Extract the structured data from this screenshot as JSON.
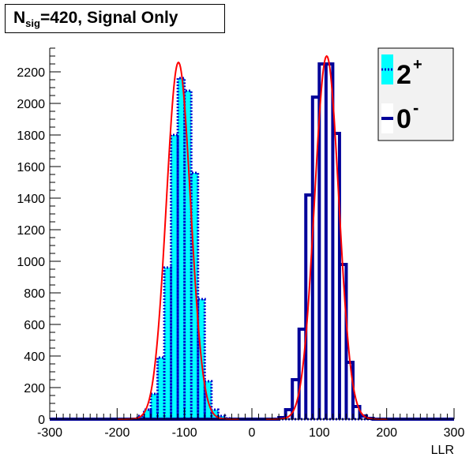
{
  "title": {
    "main": "N",
    "sub": "sig",
    "rest": "=420, Signal Only"
  },
  "chart_data": {
    "type": "histogram",
    "xlabel": "LLR",
    "ylabel": "",
    "xlim": [
      -300,
      300
    ],
    "ylim": [
      0,
      2350
    ],
    "x_ticks": [
      -300,
      -200,
      -100,
      0,
      100,
      200,
      300
    ],
    "y_ticks": [
      0,
      200,
      400,
      600,
      800,
      1000,
      1200,
      1400,
      1600,
      1800,
      2000,
      2200
    ],
    "bin_width": 10,
    "legend": {
      "placement": "top-right",
      "entries": [
        {
          "label": "2",
          "sup": "+",
          "style": "filled-cyan-dotted-blue"
        },
        {
          "label": "0",
          "sup": "-",
          "style": "solid-navy-line"
        }
      ]
    },
    "series": [
      {
        "name": "2+",
        "color": "#00ffff",
        "line_color": "#0000cc",
        "bins": [
          [
            -170,
            -160,
            20
          ],
          [
            -160,
            -150,
            60
          ],
          [
            -150,
            -140,
            160
          ],
          [
            -140,
            -130,
            390
          ],
          [
            -130,
            -120,
            960
          ],
          [
            -120,
            -110,
            1800
          ],
          [
            -110,
            -100,
            2160
          ],
          [
            -100,
            -90,
            2080
          ],
          [
            -90,
            -80,
            1560
          ],
          [
            -80,
            -70,
            760
          ],
          [
            -70,
            -60,
            240
          ],
          [
            -60,
            -50,
            60
          ],
          [
            -50,
            -40,
            20
          ],
          [
            -40,
            -30,
            5
          ]
        ]
      },
      {
        "name": "0-",
        "color": "#000099",
        "bins": [
          [
            40,
            50,
            10
          ],
          [
            50,
            60,
            60
          ],
          [
            60,
            70,
            250
          ],
          [
            70,
            80,
            570
          ],
          [
            80,
            90,
            1420
          ],
          [
            90,
            100,
            2040
          ],
          [
            100,
            110,
            2250
          ],
          [
            110,
            120,
            2250
          ],
          [
            120,
            130,
            1810
          ],
          [
            130,
            140,
            980
          ],
          [
            140,
            150,
            360
          ],
          [
            150,
            160,
            80
          ],
          [
            160,
            170,
            20
          ],
          [
            170,
            180,
            5
          ]
        ]
      },
      {
        "name": "fit",
        "color": "#ff0000",
        "gaussians": [
          {
            "amplitude": 2260,
            "mean": -109,
            "sigma": 18
          },
          {
            "amplitude": 2300,
            "mean": 111,
            "sigma": 18
          }
        ]
      }
    ]
  }
}
